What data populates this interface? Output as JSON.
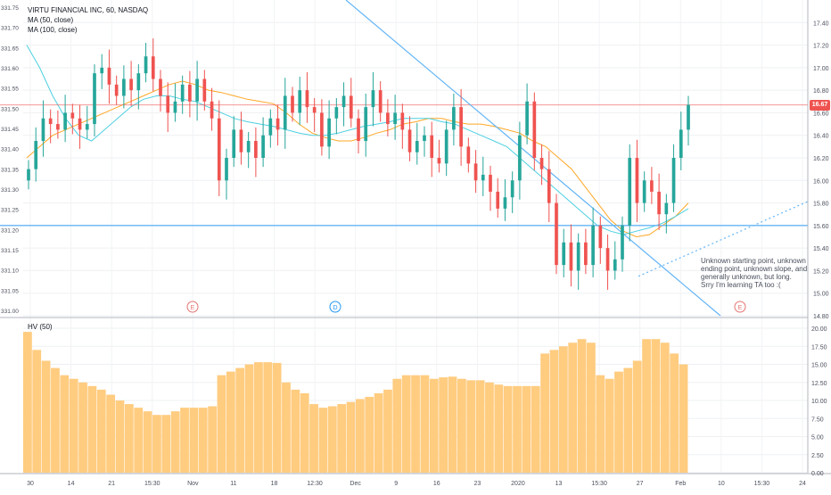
{
  "legend": {
    "title": "VIRTU FINANCIAL INC, 60, NASDAQ",
    "ma50": "MA (50, close)",
    "ma100": "MA (100, close)"
  },
  "hv_label": "HV (50)",
  "annotation": "Unknown starting point, unknown ending point, unknown slope, and generally unknown, but long.\nSrry I'm learning TA too :(",
  "last_price_label": "16.67",
  "event_markers": [
    {
      "letter": "E",
      "type": "earnings",
      "color": "#e57373"
    },
    {
      "letter": "D",
      "type": "dividend",
      "color": "#2196f3"
    },
    {
      "letter": "E",
      "type": "earnings",
      "color": "#e57373"
    }
  ],
  "colors": {
    "up": "#26a69a",
    "down": "#ef5350",
    "ma50": "#ffa726",
    "ma100": "#4dd0e1",
    "hv": "#ffcc80",
    "trendline": "#64b5f6",
    "horizontal": "#64b5f6",
    "last_price": "#ef5350"
  },
  "chart_data": [
    {
      "type": "candlestick",
      "title": "VIRTU FINANCIAL INC, 60, NASDAQ",
      "x_tick_labels": [
        "30",
        "14",
        "21",
        "15:30",
        "Nov",
        "11",
        "18",
        "12:30",
        "Dec",
        "9",
        "16",
        "23",
        "2020",
        "13",
        "15:30",
        "27",
        "Feb",
        "10",
        "15:30",
        "24"
      ],
      "right_axis_ticks": [
        "17.40",
        "17.20",
        "17.00",
        "16.80",
        "16.60",
        "16.40",
        "16.20",
        "16.00",
        "15.80",
        "15.60",
        "15.40",
        "15.20",
        "15.00",
        "14.80"
      ],
      "left_axis_ticks": [
        "331.75",
        "331.70",
        "331.65",
        "331.60",
        "331.55",
        "331.50",
        "331.45",
        "331.40",
        "331.35",
        "331.30",
        "331.25",
        "331.20",
        "331.15",
        "331.10",
        "331.05",
        "331.00"
      ],
      "ylim": [
        14.8,
        17.6
      ],
      "last_price": 16.67,
      "horizontal_lines": [
        16.67,
        15.6
      ],
      "close_series": [
        16.1,
        16.35,
        16.55,
        16.5,
        16.45,
        16.6,
        16.55,
        16.45,
        16.5,
        16.95,
        17.0,
        16.85,
        16.75,
        16.9,
        16.8,
        16.95,
        17.1,
        16.9,
        16.75,
        16.6,
        16.7,
        16.85,
        16.7,
        16.9,
        16.7,
        16.55,
        16.0,
        16.2,
        16.45,
        16.25,
        16.35,
        16.2,
        16.4,
        16.55,
        16.45,
        16.75,
        16.6,
        16.8,
        16.65,
        16.6,
        16.3,
        16.55,
        16.65,
        16.75,
        16.55,
        16.35,
        16.65,
        16.8,
        16.6,
        16.5,
        16.6,
        16.45,
        16.25,
        16.35,
        16.4,
        16.2,
        16.15,
        16.45,
        16.65,
        16.3,
        16.15,
        16.0,
        16.05,
        15.9,
        15.75,
        15.85,
        16.0,
        16.4,
        16.7,
        16.2,
        16.1,
        15.8,
        15.25,
        15.45,
        15.2,
        15.45,
        15.25,
        15.6,
        15.4,
        15.2,
        15.3,
        15.6,
        16.2,
        15.8,
        16.0,
        15.9,
        15.7,
        15.8,
        16.2,
        16.45,
        16.67
      ],
      "ma50_series": [
        16.2,
        16.3,
        16.4,
        16.45,
        16.5,
        16.55,
        16.6,
        16.65,
        16.7,
        16.75,
        16.8,
        16.85,
        16.88,
        16.85,
        16.8,
        16.78,
        16.75,
        16.72,
        16.7,
        16.68,
        16.6,
        16.5,
        16.42,
        16.38,
        16.35,
        16.35,
        16.38,
        16.42,
        16.45,
        16.5,
        16.52,
        16.55,
        16.55,
        16.52,
        16.5,
        16.5,
        16.48,
        16.45,
        16.42,
        16.35,
        16.3,
        16.2,
        16.1,
        15.95,
        15.8,
        15.65,
        15.55,
        15.5,
        15.52,
        15.6,
        15.68,
        15.8
      ],
      "ma100_series": [
        17.2,
        17.0,
        16.75,
        16.55,
        16.4,
        16.35,
        16.45,
        16.55,
        16.65,
        16.72,
        16.75,
        16.75,
        16.72,
        16.7,
        16.65,
        16.6,
        16.55,
        16.52,
        16.5,
        16.48,
        16.45,
        16.42,
        16.4,
        16.4,
        16.42,
        16.45,
        16.48,
        16.5,
        16.52,
        16.55,
        16.55,
        16.55,
        16.52,
        16.5,
        16.45,
        16.4,
        16.35,
        16.3,
        16.2,
        16.1,
        16.0,
        15.9,
        15.8,
        15.7,
        15.6,
        15.55,
        15.52,
        15.55,
        15.58,
        15.62,
        15.68,
        15.75
      ],
      "trendlines": [
        {
          "style": "solid",
          "from": [
            0.0,
            17.75
          ],
          "to": [
            1.0,
            14.8
          ]
        },
        {
          "style": "dotted",
          "from": [
            0.0,
            15.2
          ],
          "to": [
            1.0,
            15.85
          ]
        }
      ]
    },
    {
      "type": "bar",
      "title": "HV (50)",
      "axis_ticks": [
        "20.00",
        "17.50",
        "15.00",
        "12.50",
        "10.00",
        "7.50",
        "5.00",
        "2.50",
        "0.00"
      ],
      "ylim": [
        0,
        20.5
      ],
      "values": [
        19.5,
        17.0,
        15.5,
        14.5,
        13.5,
        13.0,
        12.5,
        12.0,
        11.5,
        10.8,
        10.0,
        9.5,
        9.0,
        8.5,
        8.0,
        8.0,
        8.5,
        9.0,
        9.0,
        9.0,
        9.2,
        13.5,
        14.0,
        14.5,
        15.0,
        15.3,
        15.3,
        15.2,
        12.5,
        11.5,
        11.0,
        9.5,
        9.0,
        9.2,
        9.5,
        9.8,
        10.2,
        10.5,
        11.0,
        11.5,
        13.0,
        13.5,
        13.5,
        13.5,
        13.0,
        13.2,
        13.3,
        13.0,
        12.8,
        12.8,
        12.5,
        12.2,
        12.0,
        12.0,
        12.0,
        12.0,
        16.5,
        17.0,
        17.5,
        18.0,
        18.5,
        18.0,
        13.5,
        13.0,
        14.0,
        14.5,
        15.5,
        18.5,
        18.5,
        18.0,
        16.5,
        15.0
      ]
    }
  ]
}
